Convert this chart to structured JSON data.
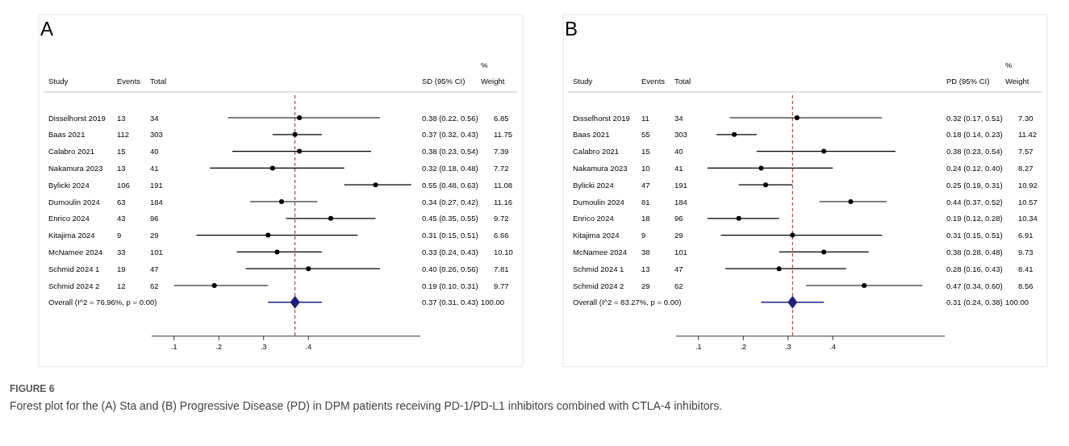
{
  "chart_data": [
    {
      "type": "scatter",
      "orientation": "horizontal",
      "title": "A",
      "ylabel": "Study",
      "xlim": [
        0.05,
        0.65
      ],
      "xticks": [
        {
          "value": 0.1,
          "label": ".1"
        },
        {
          "value": 0.2,
          "label": ".2"
        },
        {
          "value": 0.3,
          "label": ".3"
        },
        {
          "value": 0.4,
          "label": ".4"
        }
      ],
      "categories": [
        "Disselhorst 2019",
        "Baas 2021",
        "Calabro 2021",
        "Nakamura 2023",
        "Bylicki 2024",
        "Dumoulin 2024",
        "Enrico 2024",
        "Kitajima 2024",
        "McNamee 2024",
        "Schmid 2024 1",
        "Schmid 2024 2",
        "Overall  (I^2 = 76.96%, p = 0.00)"
      ],
      "series": [
        {
          "color": "#000000",
          "marker": "circle",
          "values": [
            0.38,
            0.37,
            0.38,
            0.32,
            0.55,
            0.34,
            0.45,
            0.31,
            0.33,
            0.4,
            0.19,
            null
          ],
          "errors": [
            [
              0.22,
              0.56
            ],
            [
              0.32,
              0.43
            ],
            [
              0.23,
              0.54
            ],
            [
              0.18,
              0.48
            ],
            [
              0.48,
              0.63
            ],
            [
              0.27,
              0.42
            ],
            [
              0.35,
              0.55
            ],
            [
              0.15,
              0.51
            ],
            [
              0.24,
              0.43
            ],
            [
              0.26,
              0.56
            ],
            [
              0.1,
              0.31
            ],
            null
          ],
          "value_labels": [
            "0.38 (0.22, 0.56)",
            "0.37 (0.32, 0.43)",
            "0.38 (0.23, 0.54)",
            "0.32 (0.18, 0.48)",
            "0.55 (0.48, 0.63)",
            "0.34 (0.27, 0.42)",
            "0.45 (0.35, 0.55)",
            "0.31 (0.15, 0.51)",
            "0.33 (0.24, 0.43)",
            "0.40 (0.26, 0.56)",
            "0.19 (0.10, 0.31)",
            "0.37 (0.31, 0.43)"
          ]
        },
        {
          "color": "#1f1f80",
          "marker": "diamond",
          "values": [
            null,
            null,
            null,
            null,
            null,
            null,
            null,
            null,
            null,
            null,
            null,
            0.37
          ],
          "errors": [
            null,
            null,
            null,
            null,
            null,
            null,
            null,
            null,
            null,
            null,
            null,
            [
              0.31,
              0.43
            ]
          ]
        }
      ],
      "ref_lines": [
        {
          "axis": "x",
          "value": 0.37,
          "color": "#a0252a",
          "line_style": "dashed"
        }
      ],
      "annotations": [
        "Events",
        "Total",
        "SD (95% CI)",
        "%",
        "Weight",
        "13",
        "34",
        "6.85",
        "112",
        "303",
        "11.75",
        "15",
        "40",
        "7.39",
        "13",
        "41",
        "7.72",
        "106",
        "191",
        "11.08",
        "63",
        "184",
        "11.16",
        "43",
        "96",
        "9.72",
        "9",
        "29",
        "6.66",
        "33",
        "101",
        "10.10",
        "19",
        "47",
        "7.81",
        "12",
        "62",
        "9.77",
        "100.00"
      ]
    },
    {
      "type": "scatter",
      "orientation": "horizontal",
      "title": "B",
      "ylabel": "Study",
      "xlim": [
        0.05,
        0.65
      ],
      "xticks": [
        {
          "value": 0.1,
          "label": ".1"
        },
        {
          "value": 0.2,
          "label": ".2"
        },
        {
          "value": 0.3,
          "label": ".3"
        },
        {
          "value": 0.4,
          "label": ".4"
        }
      ],
      "categories": [
        "Disselhorst 2019",
        "Baas 2021",
        "Calabro 2021",
        "Nakamura 2023",
        "Bylicki 2024",
        "Dumoulin 2024",
        "Enrico 2024",
        "Kitajima 2024",
        "McNamee 2024",
        "Schmid 2024 1",
        "Schmid 2024 2",
        "Overall  (I^2 = 83.27%, p = 0.00)"
      ],
      "series": [
        {
          "color": "#000000",
          "marker": "circle",
          "values": [
            0.32,
            0.18,
            0.38,
            0.24,
            0.25,
            0.44,
            0.19,
            0.31,
            0.38,
            0.28,
            0.47,
            null
          ],
          "errors": [
            [
              0.17,
              0.51
            ],
            [
              0.14,
              0.23
            ],
            [
              0.23,
              0.54
            ],
            [
              0.12,
              0.4
            ],
            [
              0.19,
              0.31
            ],
            [
              0.37,
              0.52
            ],
            [
              0.12,
              0.28
            ],
            [
              0.15,
              0.51
            ],
            [
              0.28,
              0.48
            ],
            [
              0.16,
              0.43
            ],
            [
              0.34,
              0.6
            ],
            null
          ],
          "value_labels": [
            "0.32 (0.17, 0.51)",
            "0.18 (0.14, 0.23)",
            "0.38 (0.23, 0.54)",
            "0.24 (0.12, 0.40)",
            "0.25 (0.19, 0.31)",
            "0.44 (0.37, 0.52)",
            "0.19 (0.12, 0.28)",
            "0.31 (0.15, 0.51)",
            "0.38 (0.28, 0.48)",
            "0.28 (0.16, 0.43)",
            "0.47 (0.34, 0.60)",
            "0.31 (0.24, 0.38)"
          ]
        },
        {
          "color": "#1f1f80",
          "marker": "diamond",
          "values": [
            null,
            null,
            null,
            null,
            null,
            null,
            null,
            null,
            null,
            null,
            null,
            0.31
          ],
          "errors": [
            null,
            null,
            null,
            null,
            null,
            null,
            null,
            null,
            null,
            null,
            null,
            [
              0.24,
              0.38
            ]
          ]
        }
      ],
      "ref_lines": [
        {
          "axis": "x",
          "value": 0.31,
          "color": "#a0252a",
          "line_style": "dashed"
        }
      ],
      "annotations": [
        "Events",
        "Total",
        "PD (95% CI)",
        "%",
        "Weight",
        "11",
        "34",
        "7.30",
        "55",
        "303",
        "11.42",
        "15",
        "40",
        "7.57",
        "10",
        "41",
        "8.27",
        "47",
        "191",
        "10.92",
        "81",
        "184",
        "10.57",
        "18",
        "96",
        "10.34",
        "9",
        "29",
        "6.91",
        "38",
        "101",
        "9.73",
        "13",
        "47",
        "8.41",
        "29",
        "62",
        "8.56",
        "100.00"
      ]
    },
    {
      "type": "other",
      "title": "FIGURE 6",
      "subtitle": "Forest plot for the (A) Sta and (B) Progressive Disease (PD) in DPM patients receiving PD-1/PD-L1 inhibitors combined with CTLA-4 inhibitors."
    }
  ]
}
